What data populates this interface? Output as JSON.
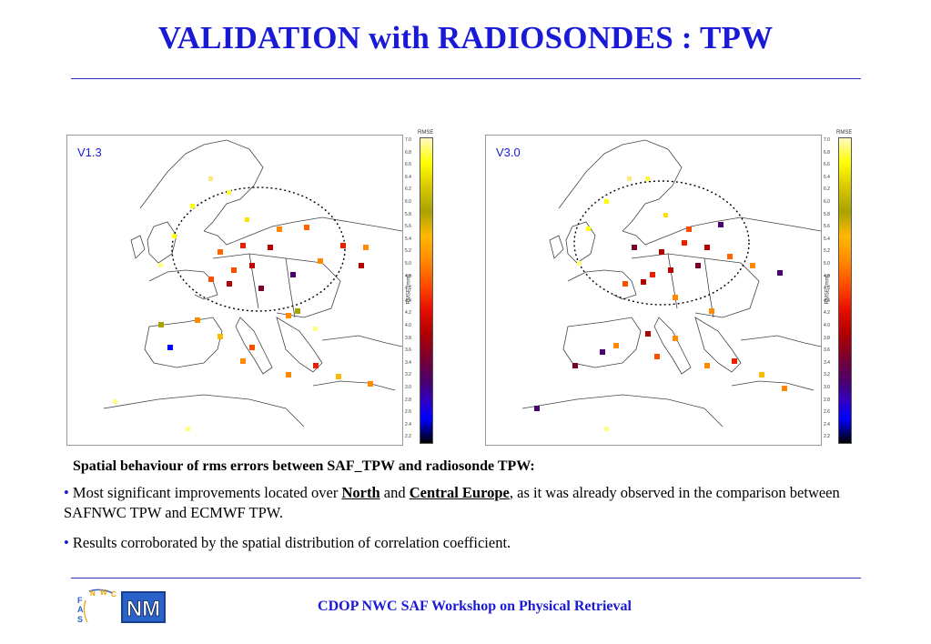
{
  "slide": {
    "title": "VALIDATION with RADIOSONDES : TPW",
    "footer": "CDOP NWC SAF Workshop on Physical Retrieval"
  },
  "maps": [
    {
      "label": "V1.3"
    },
    {
      "label": "V3.0"
    }
  ],
  "colorbar": {
    "title": "RMSE",
    "axis_label": "RMSE (mm)",
    "ticks": [
      "7.0",
      "6.8",
      "6.6",
      "6.4",
      "6.2",
      "6.0",
      "5.8",
      "5.6",
      "5.4",
      "5.2",
      "5.0",
      "4.8",
      "4.6",
      "4.4",
      "4.2",
      "4.0",
      "3.8",
      "3.6",
      "3.4",
      "3.2",
      "3.0",
      "2.8",
      "2.6",
      "2.4",
      "2.2"
    ]
  },
  "caption": {
    "heading": "Spatial behaviour of rms errors between SAF_TPW and radiosonde TPW:",
    "bullet_char": "•",
    "bullet1_pre": " Most significant improvements located over ",
    "bullet1_north": "North",
    "bullet1_and": " and ",
    "bullet1_central": "Central Europe",
    "bullet1_post": ", as it was already observed in the comparison between SAFNWC TPW and ECMWF TPW.",
    "bullet2": " Results corroborated by the spatial distribution of correlation coefficient."
  },
  "logos": {
    "saf_letters": [
      "S",
      "A",
      "F",
      "N",
      "W",
      "C"
    ],
    "nm_text": "NM"
  },
  "colors": {
    "title": "#1a1ad6",
    "rule": "#2b2bb3",
    "map_label": "#1a1ad6"
  }
}
